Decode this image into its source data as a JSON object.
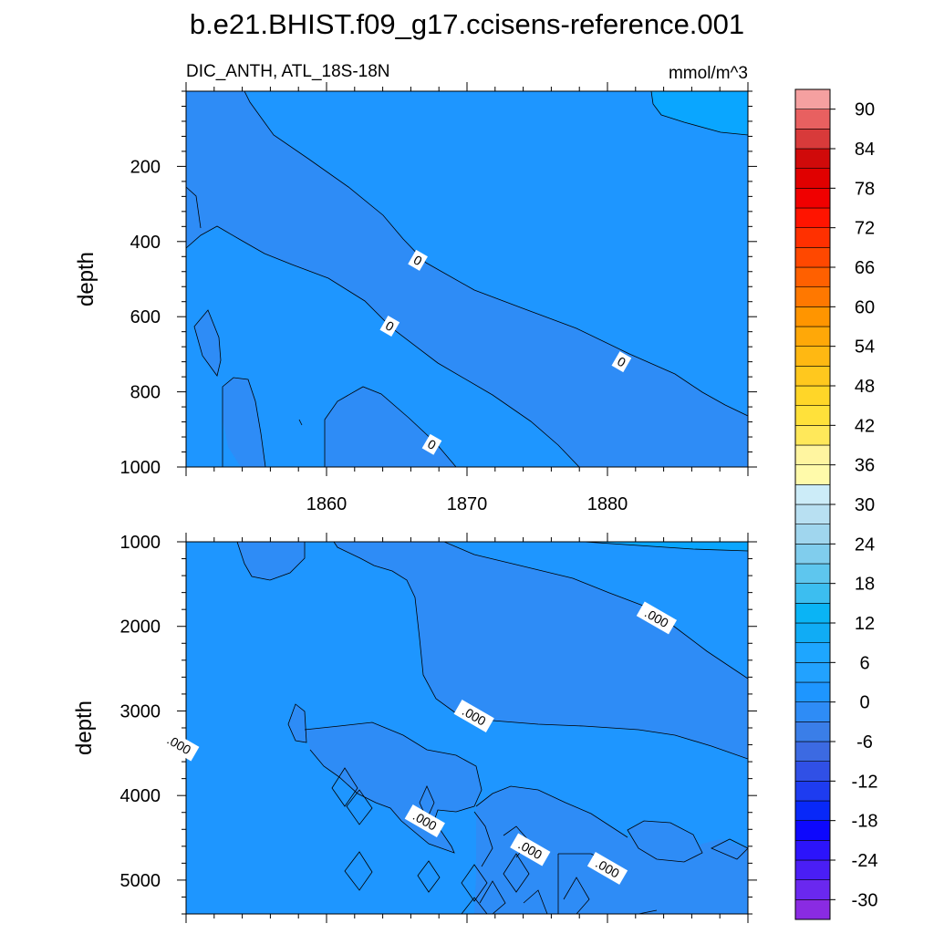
{
  "figure": {
    "title": "b.e21.BHIST.f09_g17.ccisens-reference.001",
    "left_subtitle": "DIC_ANTH, ATL_18S-18N",
    "right_subtitle": "mmol/m^3"
  },
  "chart_data": [
    {
      "type": "contour",
      "panel": "upper",
      "xlabel": "",
      "ylabel": "depth",
      "xlim": [
        1850,
        1890
      ],
      "ylim": [
        1000,
        0
      ],
      "xticks": [
        1860,
        1870,
        1880
      ],
      "yticks": [
        200,
        400,
        600,
        800,
        1000
      ],
      "contour_labels": [
        {
          "text": "0",
          "x": 1866.5,
          "y": 450
        },
        {
          "text": "0",
          "x": 1864.5,
          "y": 625
        },
        {
          "text": "0",
          "x": 1881,
          "y": 720
        },
        {
          "text": "0",
          "x": 1867.5,
          "y": 940
        }
      ]
    },
    {
      "type": "contour",
      "panel": "lower",
      "xlabel": "",
      "ylabel": "depth",
      "xlim": [
        1850,
        1890
      ],
      "ylim": [
        5400,
        1000
      ],
      "yticks": [
        1000,
        2000,
        3000,
        4000,
        5000
      ],
      "contour_labels": [
        {
          "text": ".000",
          "x": 1883.5,
          "y": 1900
        },
        {
          "text": ".000",
          "x": 1870.5,
          "y": 3060
        },
        {
          "text": ".000",
          "x": 1849.5,
          "y": 3400
        },
        {
          "text": ".000",
          "x": 1867,
          "y": 4300
        },
        {
          "text": ".000",
          "x": 1874.5,
          "y": 4640
        },
        {
          "text": ".000",
          "x": 1880,
          "y": 4860
        }
      ]
    },
    {
      "type": "colorbar",
      "levels": [
        -33,
        -30,
        -27,
        -24,
        -21,
        -18,
        -15,
        -12,
        -9,
        -6,
        -3,
        0,
        3,
        6,
        9,
        12,
        15,
        18,
        21,
        24,
        27,
        30,
        33,
        36,
        39,
        42,
        45,
        48,
        51,
        54,
        57,
        60,
        63,
        66,
        69,
        72,
        75,
        78,
        81,
        84,
        87,
        90,
        93
      ],
      "tick_labels": [
        "-30",
        "-24",
        "-18",
        "-12",
        "-6",
        "0",
        "6",
        "12",
        "18",
        "24",
        "30",
        "36",
        "42",
        "48",
        "54",
        "60",
        "66",
        "72",
        "78",
        "84",
        "90"
      ],
      "colors": [
        "#8a2be2",
        "#6a28ef",
        "#4a1ef5",
        "#2c14fb",
        "#0d08fd",
        "#0828f8",
        "#1e3cf0",
        "#3050e6",
        "#3c6ae2",
        "#3a7ee8",
        "#2e8cf6",
        "#1e96ff",
        "#22a2ff",
        "#1ea6ff",
        "#10acf5",
        "#0ab4f5",
        "#3cbef0",
        "#5ec6ee",
        "#80cded",
        "#a0d6ee",
        "#b8e0f2",
        "#ccecf8",
        "#fffaaa",
        "#fff5a0",
        "#ffe85a",
        "#ffe13a",
        "#ffd628",
        "#ffc81e",
        "#ffb812",
        "#ffa808",
        "#ff9500",
        "#ff7800",
        "#ff6000",
        "#ff4800",
        "#ff3000",
        "#ff1400",
        "#f00000",
        "#e00000",
        "#d00a0a",
        "#d83a3a",
        "#e86060",
        "#f5a0a0"
      ]
    }
  ],
  "colors": {
    "zero_band": "#1e96ff",
    "negative_band": "#2e8cf6",
    "positive_band": "#0aa6ff"
  }
}
